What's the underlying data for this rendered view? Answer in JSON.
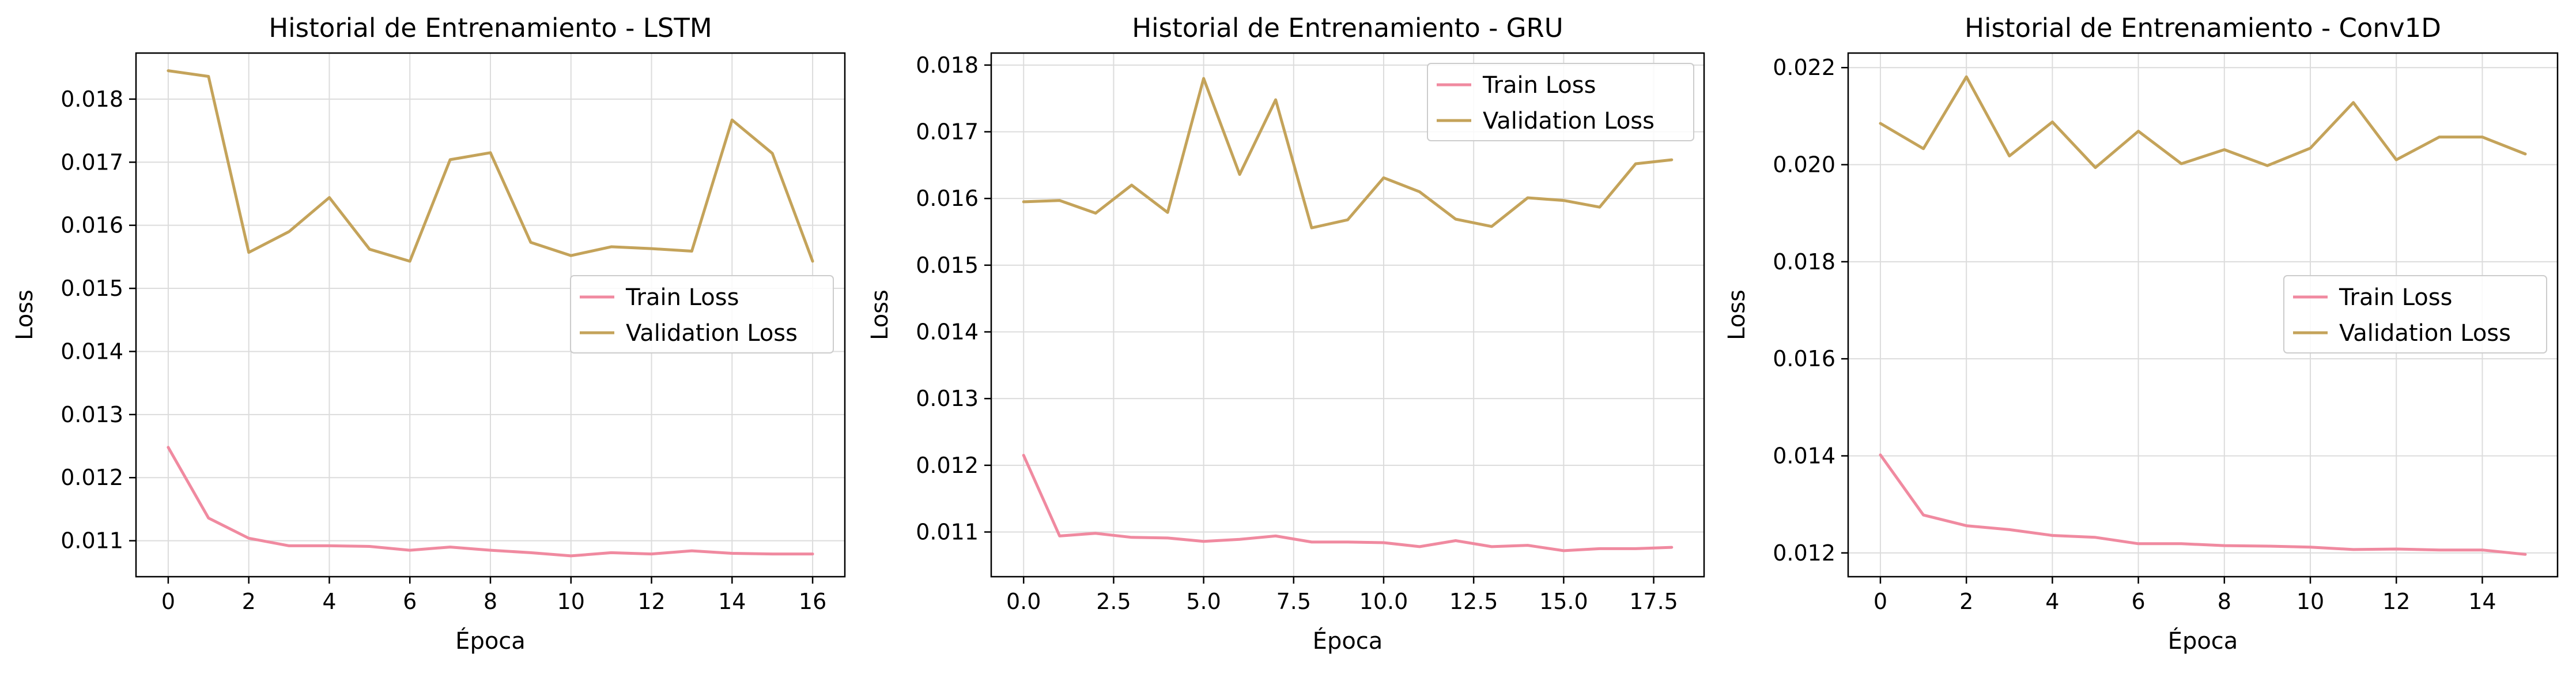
{
  "chart_data": [
    {
      "type": "line",
      "title": "Historial de Entrenamiento - LSTM",
      "xlabel": "Época",
      "ylabel": "Loss",
      "xlim": [
        -0.8,
        16.8
      ],
      "ylim": [
        0.01043,
        0.01873
      ],
      "xticks": [
        0,
        2,
        4,
        6,
        8,
        10,
        12,
        14,
        16
      ],
      "xtick_labels": [
        "0",
        "2",
        "4",
        "6",
        "8",
        "10",
        "12",
        "14",
        "16"
      ],
      "yticks": [
        0.011,
        0.012,
        0.013,
        0.014,
        0.015,
        0.016,
        0.017,
        0.018
      ],
      "ytick_labels": [
        "0.011",
        "0.012",
        "0.013",
        "0.014",
        "0.015",
        "0.016",
        "0.017",
        "0.018"
      ],
      "grid": true,
      "legend": "center-right",
      "x": [
        0,
        1,
        2,
        3,
        4,
        5,
        6,
        7,
        8,
        9,
        10,
        11,
        12,
        13,
        14,
        15,
        16
      ],
      "series": [
        {
          "name": "Train Loss",
          "color": "#f08aa0",
          "values": [
            0.01248,
            0.01136,
            0.01104,
            0.01092,
            0.01092,
            0.01091,
            0.01085,
            0.0109,
            0.01085,
            0.01081,
            0.01076,
            0.01081,
            0.01079,
            0.01084,
            0.0108,
            0.01079,
            0.01079
          ]
        },
        {
          "name": "Validation Loss",
          "color": "#c4a35a",
          "values": [
            0.01845,
            0.01836,
            0.01557,
            0.0159,
            0.01644,
            0.01562,
            0.01543,
            0.01704,
            0.01715,
            0.01573,
            0.01552,
            0.01566,
            0.01563,
            0.01559,
            0.01767,
            0.01714,
            0.01543
          ]
        }
      ]
    },
    {
      "type": "line",
      "title": "Historial de Entrenamiento - GRU",
      "xlabel": "Época",
      "ylabel": "Loss",
      "xlim": [
        -0.9,
        18.9
      ],
      "ylim": [
        0.01033,
        0.01818
      ],
      "xticks": [
        0,
        2.5,
        5,
        7.5,
        10,
        12.5,
        15,
        17.5
      ],
      "xtick_labels": [
        "0.0",
        "2.5",
        "5.0",
        "7.5",
        "10.0",
        "12.5",
        "15.0",
        "17.5"
      ],
      "yticks": [
        0.011,
        0.012,
        0.013,
        0.014,
        0.015,
        0.016,
        0.017,
        0.018
      ],
      "ytick_labels": [
        "0.011",
        "0.012",
        "0.013",
        "0.014",
        "0.015",
        "0.016",
        "0.017",
        "0.018"
      ],
      "grid": true,
      "legend": "top-right",
      "x": [
        0,
        1,
        2,
        3,
        4,
        5,
        6,
        7,
        8,
        9,
        10,
        11,
        12,
        13,
        14,
        15,
        16,
        17,
        18
      ],
      "series": [
        {
          "name": "Train Loss",
          "color": "#f08aa0",
          "values": [
            0.01215,
            0.01094,
            0.01098,
            0.01092,
            0.01091,
            0.01086,
            0.01089,
            0.01094,
            0.01085,
            0.01085,
            0.01084,
            0.01078,
            0.01087,
            0.01078,
            0.0108,
            0.01072,
            0.01075,
            0.01075,
            0.01077
          ]
        },
        {
          "name": "Validation Loss",
          "color": "#c4a35a",
          "values": [
            0.01595,
            0.01597,
            0.01578,
            0.0162,
            0.01579,
            0.0178,
            0.01636,
            0.01748,
            0.01556,
            0.01568,
            0.01631,
            0.0161,
            0.01569,
            0.01558,
            0.01601,
            0.01597,
            0.01587,
            0.01652,
            0.01658
          ]
        }
      ]
    },
    {
      "type": "line",
      "title": "Historial de Entrenamiento - Conv1D",
      "xlabel": "Época",
      "ylabel": "Loss",
      "xlim": [
        -0.75,
        15.75
      ],
      "ylim": [
        0.01151,
        0.0223
      ],
      "xticks": [
        0,
        2,
        4,
        6,
        8,
        10,
        12,
        14
      ],
      "xtick_labels": [
        "0",
        "2",
        "4",
        "6",
        "8",
        "10",
        "12",
        "14"
      ],
      "yticks": [
        0.012,
        0.014,
        0.016,
        0.018,
        0.02,
        0.022
      ],
      "ytick_labels": [
        "0.012",
        "0.014",
        "0.016",
        "0.018",
        "0.020",
        "0.022"
      ],
      "grid": true,
      "legend": "center-right",
      "x": [
        0,
        1,
        2,
        3,
        4,
        5,
        6,
        7,
        8,
        9,
        10,
        11,
        12,
        13,
        14,
        15
      ],
      "series": [
        {
          "name": "Train Loss",
          "color": "#f08aa0",
          "values": [
            0.01402,
            0.01278,
            0.01256,
            0.01248,
            0.01236,
            0.01232,
            0.01219,
            0.01219,
            0.01215,
            0.01214,
            0.01212,
            0.01207,
            0.01208,
            0.01206,
            0.01206,
            0.01197
          ]
        },
        {
          "name": "Validation Loss",
          "color": "#c4a35a",
          "values": [
            0.02085,
            0.02033,
            0.02181,
            0.02018,
            0.02088,
            0.01994,
            0.02069,
            0.02002,
            0.02031,
            0.01998,
            0.02034,
            0.02128,
            0.0201,
            0.02057,
            0.02057,
            0.02022
          ]
        }
      ]
    }
  ]
}
